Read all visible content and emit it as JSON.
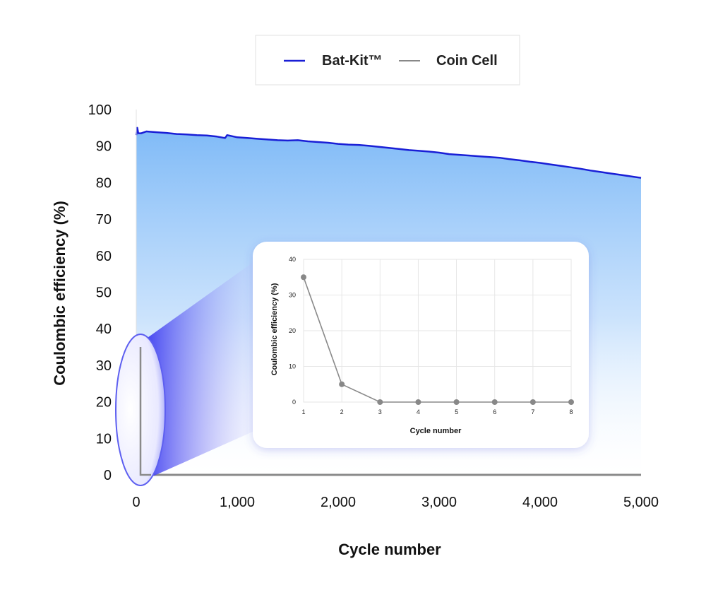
{
  "chart_data": [
    {
      "type": "area",
      "xlabel": "Cycle number",
      "ylabel": "Coulombic efficiency (%)",
      "xlim": [
        0,
        5000
      ],
      "ylim": [
        0,
        100
      ],
      "x_ticks": [
        "0",
        "1,000",
        "2,000",
        "3,000",
        "4,000",
        "5,000"
      ],
      "y_ticks": [
        "0",
        "10",
        "20",
        "30",
        "40",
        "50",
        "60",
        "70",
        "80",
        "90",
        "100"
      ],
      "legend": {
        "placement": "top-center",
        "entries": [
          {
            "label": "Bat-Kit™",
            "color": "#1a1fd6"
          },
          {
            "label": "Coin Cell",
            "color": "#888888"
          }
        ]
      },
      "series": [
        {
          "name": "Bat-Kit™",
          "color": "#1a1fd6",
          "fill": "#7fbaf7",
          "x": [
            0,
            10,
            20,
            50,
            100,
            200,
            300,
            400,
            500,
            600,
            700,
            800,
            880,
            900,
            1000,
            1100,
            1200,
            1300,
            1400,
            1500,
            1600,
            1700,
            1800,
            1900,
            2000,
            2100,
            2200,
            2300,
            2400,
            2500,
            2600,
            2700,
            2800,
            2900,
            3000,
            3100,
            3200,
            3300,
            3400,
            3500,
            3600,
            3700,
            3800,
            3900,
            4000,
            4100,
            4200,
            4300,
            4400,
            4500,
            4600,
            4700,
            4800,
            4900,
            5000
          ],
          "y": [
            93,
            95,
            93.5,
            93.5,
            94,
            93.8,
            93.6,
            93.3,
            93.2,
            93,
            92.9,
            92.6,
            92.2,
            93,
            92.4,
            92.2,
            92,
            91.8,
            91.6,
            91.5,
            91.6,
            91.3,
            91.1,
            90.9,
            90.6,
            90.4,
            90.3,
            90.1,
            89.8,
            89.5,
            89.2,
            88.9,
            88.7,
            88.5,
            88.2,
            87.8,
            87.6,
            87.4,
            87.2,
            87,
            86.8,
            86.4,
            86.1,
            85.7,
            85.4,
            85,
            84.6,
            84.2,
            83.8,
            83.3,
            82.9,
            82.5,
            82.1,
            81.7,
            81.3
          ]
        },
        {
          "name": "Coin Cell",
          "color": "#888888",
          "x": [
            1,
            2,
            3,
            4,
            5,
            6,
            7,
            8
          ],
          "y": [
            35,
            5,
            0,
            0,
            0,
            0,
            0,
            0
          ]
        }
      ]
    },
    {
      "type": "line",
      "title": "",
      "xlabel": "Cycle number",
      "ylabel": "Coulombic efficiency (%)",
      "xlim": [
        1,
        8
      ],
      "ylim": [
        0,
        40
      ],
      "x_ticks": [
        "1",
        "2",
        "3",
        "4",
        "5",
        "6",
        "7",
        "8"
      ],
      "y_ticks": [
        "0",
        "10",
        "20",
        "30",
        "40"
      ],
      "grid": true,
      "series": [
        {
          "color": "#888888",
          "x": [
            1,
            2,
            3,
            4,
            5,
            6,
            7,
            8
          ],
          "y": [
            35,
            5,
            0,
            0,
            0,
            0,
            0,
            0
          ]
        }
      ]
    }
  ]
}
